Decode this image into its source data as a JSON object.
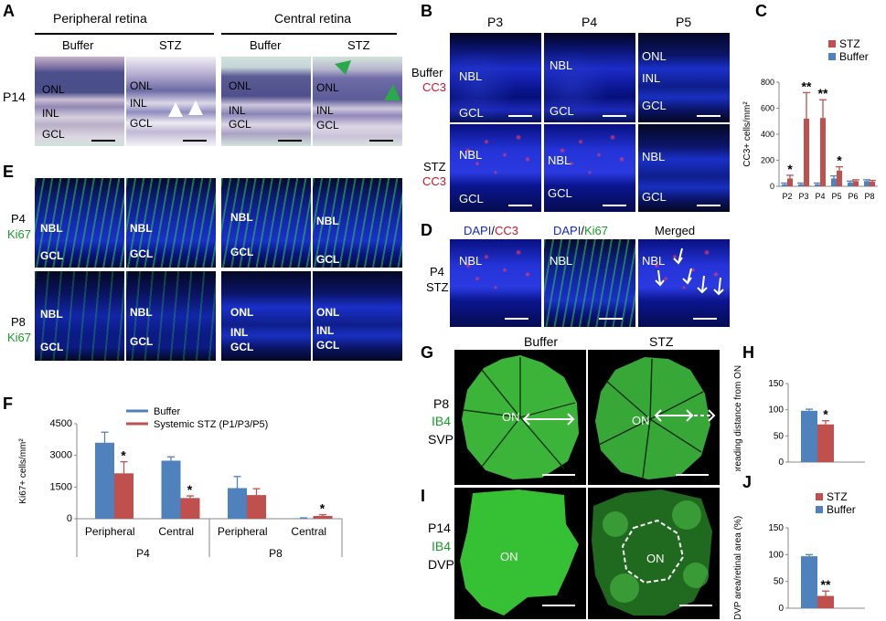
{
  "panels": {
    "A": {
      "label": "A",
      "group_left": "Peripheral retina",
      "group_right": "Central retina",
      "col_buffer_1": "Buffer",
      "col_stz_1": "STZ",
      "col_buffer_2": "Buffer",
      "col_stz_2": "STZ",
      "row_label": "P14",
      "layers": {
        "onl": "ONL",
        "inl": "INL",
        "gcl": "GCL"
      }
    },
    "B": {
      "label": "B",
      "cols": [
        "P3",
        "P4",
        "P5"
      ],
      "row1_a": "Buffer",
      "row1_b": "CC3",
      "row2_a": "STZ",
      "row2_b": "CC3",
      "nbl": "NBL",
      "gcl": "GCL",
      "onl": "ONL",
      "inl": "INL"
    },
    "C": {
      "label": "C"
    },
    "D": {
      "label": "D",
      "col1_a": "DAPI",
      "col1_sep": "/",
      "col1_b": "CC3",
      "col2_a": "DAPI",
      "col2_sep": "/",
      "col2_b": "Ki67",
      "col3": "Merged",
      "row_a": "P4",
      "row_b": "STZ",
      "nbl": "NBL"
    },
    "E": {
      "label": "E",
      "row1_a": "P4",
      "row1_b": "Ki67",
      "row2_a": "P8",
      "row2_b": "Ki67",
      "nbl": "NBL",
      "gcl": "GCL",
      "onl": "ONL",
      "inl": "INL"
    },
    "F": {
      "label": "F"
    },
    "G": {
      "label": "G",
      "col_buffer": "Buffer",
      "col_stz": "STZ",
      "row_a": "P8",
      "row_b": "IB4",
      "row_c": "SVP",
      "on": "ON"
    },
    "H": {
      "label": "H"
    },
    "I": {
      "label": "I",
      "row_a": "P14",
      "row_b": "IB4",
      "row_c": "DVP",
      "on": "ON"
    },
    "J": {
      "label": "J"
    }
  },
  "colors": {
    "stz": "#c0504d",
    "buffer": "#4f81bd"
  },
  "chart_data": [
    {
      "id": "C",
      "type": "bar",
      "legend": [
        "STZ",
        "Buffer"
      ],
      "legend_placement": "top-right",
      "ylabel": "CC3+ cells/mm²",
      "ylim": [
        0,
        800
      ],
      "yticks": [
        0,
        200,
        400,
        600,
        800
      ],
      "categories": [
        "P2",
        "P3",
        "P4",
        "P5",
        "P6",
        "P8"
      ],
      "series": [
        {
          "name": "Buffer",
          "values": [
            15,
            15,
            15,
            60,
            30,
            40
          ],
          "errors": [
            10,
            10,
            10,
            20,
            10,
            10
          ]
        },
        {
          "name": "STZ",
          "values": [
            60,
            520,
            525,
            120,
            40,
            35
          ],
          "errors": [
            25,
            200,
            140,
            30,
            10,
            10
          ]
        }
      ],
      "annotations": [
        "*",
        "**",
        "**",
        "*",
        "",
        ""
      ]
    },
    {
      "id": "F",
      "type": "bar",
      "legend": [
        "Buffer",
        "Systemic  STZ (P1/P3/P5)"
      ],
      "legend_placement": "top",
      "ylabel": "Ki67+ cells/mm²",
      "ylim": [
        0,
        4500
      ],
      "yticks": [
        "0",
        "1500",
        "3000",
        "4500"
      ],
      "categories": [
        "Peripheral",
        "Central",
        "Peripheral",
        "Central"
      ],
      "groups": [
        "P4",
        "P8"
      ],
      "series": [
        {
          "name": "Buffer",
          "values": [
            3600,
            2750,
            1450,
            20
          ],
          "errors": [
            500,
            180,
            550,
            20
          ]
        },
        {
          "name": "Systemic  STZ (P1/P3/P5)",
          "values": [
            2150,
            980,
            1120,
            130
          ],
          "errors": [
            550,
            100,
            300,
            60
          ]
        }
      ],
      "annotations": [
        "*",
        "*",
        "",
        "*"
      ]
    },
    {
      "id": "H",
      "type": "bar",
      "ylabel": "Spreading distance from ON",
      "ylim": [
        0,
        150
      ],
      "yticks": [
        0,
        50,
        100,
        150
      ],
      "series": [
        {
          "name": "Buffer",
          "values": [
            98
          ],
          "errors": [
            3
          ]
        },
        {
          "name": "STZ",
          "values": [
            72
          ],
          "errors": [
            7
          ]
        }
      ],
      "annotations": [
        "",
        "*"
      ]
    },
    {
      "id": "J",
      "type": "bar",
      "legend": [
        "STZ",
        "Buffer"
      ],
      "legend_placement": "top",
      "ylabel": "DVP area/retinal area (%)",
      "ylim": [
        0,
        150
      ],
      "yticks": [
        0,
        50,
        100,
        150
      ],
      "series": [
        {
          "name": "Buffer",
          "values": [
            97
          ],
          "errors": [
            3
          ]
        },
        {
          "name": "STZ",
          "values": [
            23
          ],
          "errors": [
            9
          ]
        }
      ],
      "annotations": [
        "",
        "**"
      ]
    }
  ]
}
